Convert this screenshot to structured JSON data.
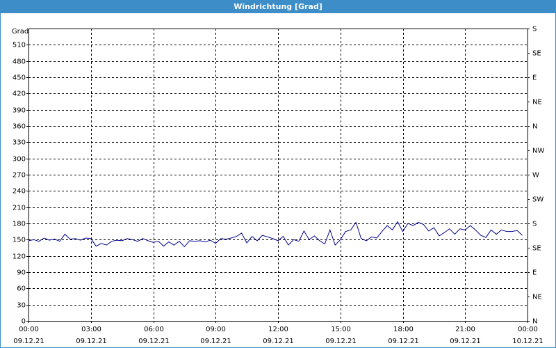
{
  "chart_data": {
    "type": "line",
    "title": "Windrichtung [Grad]",
    "y_label": "Grad",
    "x": [
      0,
      0.25,
      0.5,
      0.75,
      1,
      1.25,
      1.5,
      1.75,
      2,
      2.25,
      2.5,
      2.75,
      3,
      3.25,
      3.5,
      3.75,
      4,
      4.25,
      4.5,
      4.75,
      5,
      5.25,
      5.5,
      5.75,
      6,
      6.25,
      6.5,
      6.75,
      7,
      7.25,
      7.5,
      7.75,
      8,
      8.25,
      8.5,
      8.75,
      9,
      9.25,
      9.5,
      9.75,
      10,
      10.25,
      10.5,
      10.75,
      11,
      11.25,
      11.5,
      11.75,
      12,
      12.25,
      12.5,
      12.75,
      13,
      13.25,
      13.5,
      13.75,
      14,
      14.25,
      14.5,
      14.75,
      15,
      15.25,
      15.5,
      15.75,
      16,
      16.25,
      16.5,
      16.75,
      17,
      17.25,
      17.5,
      17.75,
      18,
      18.25,
      18.5,
      18.75,
      19,
      19.25,
      19.5,
      19.75,
      20,
      20.25,
      20.5,
      20.75,
      21,
      21.25,
      21.5,
      21.75,
      22,
      22.25,
      22.5,
      22.75,
      23,
      23.25,
      23.5,
      23.75
    ],
    "values": [
      148,
      150,
      147,
      153,
      149,
      151,
      147,
      160,
      151,
      152,
      149,
      153,
      152,
      138,
      143,
      140,
      147,
      149,
      148,
      152,
      150,
      147,
      152,
      148,
      145,
      147,
      138,
      146,
      140,
      147,
      137,
      148,
      147,
      148,
      146,
      149,
      143,
      152,
      151,
      153,
      156,
      162,
      144,
      156,
      148,
      158,
      155,
      152,
      148,
      156,
      140,
      150,
      147,
      166,
      150,
      157,
      148,
      142,
      168,
      140,
      150,
      165,
      168,
      182,
      152,
      148,
      155,
      153,
      165,
      176,
      168,
      183,
      165,
      180,
      176,
      182,
      178,
      166,
      172,
      157,
      163,
      170,
      160,
      170,
      168,
      176,
      168,
      158,
      154,
      168,
      160,
      168,
      165,
      165,
      167,
      158
    ],
    "color": "#00008b",
    "xlim": [
      0,
      24
    ],
    "xticks": [
      {
        "value": 0,
        "label": "00:00\n09.12.21"
      },
      {
        "value": 3,
        "label": "03:00\n09.12.21"
      },
      {
        "value": 6,
        "label": "06:00\n09.12.21"
      },
      {
        "value": 9,
        "label": "09:00\n09.12.21"
      },
      {
        "value": 12,
        "label": "12:00\n09.12.21"
      },
      {
        "value": 15,
        "label": "15:00\n09.12.21"
      },
      {
        "value": 18,
        "label": "18:00\n09.12.21"
      },
      {
        "value": 21,
        "label": "21:00\n09.12.21"
      },
      {
        "value": 24,
        "label": "00:00\n10.12.21"
      }
    ],
    "ylim": [
      0,
      540
    ],
    "yticks": [
      0,
      30,
      60,
      90,
      120,
      150,
      180,
      210,
      240,
      270,
      300,
      330,
      360,
      390,
      420,
      450,
      480,
      510
    ],
    "y2lim": [
      0,
      540
    ],
    "y2ticks": [
      {
        "value": 0,
        "label": "N"
      },
      {
        "value": 45,
        "label": "NE"
      },
      {
        "value": 90,
        "label": "E"
      },
      {
        "value": 135,
        "label": "SE"
      },
      {
        "value": 180,
        "label": "S"
      },
      {
        "value": 225,
        "label": "SW"
      },
      {
        "value": 270,
        "label": "W"
      },
      {
        "value": 315,
        "label": "NW"
      },
      {
        "value": 360,
        "label": "N"
      },
      {
        "value": 405,
        "label": "NE"
      },
      {
        "value": 450,
        "label": "E"
      },
      {
        "value": 495,
        "label": "SE"
      },
      {
        "value": 540,
        "label": "S"
      }
    ],
    "grid": true
  }
}
